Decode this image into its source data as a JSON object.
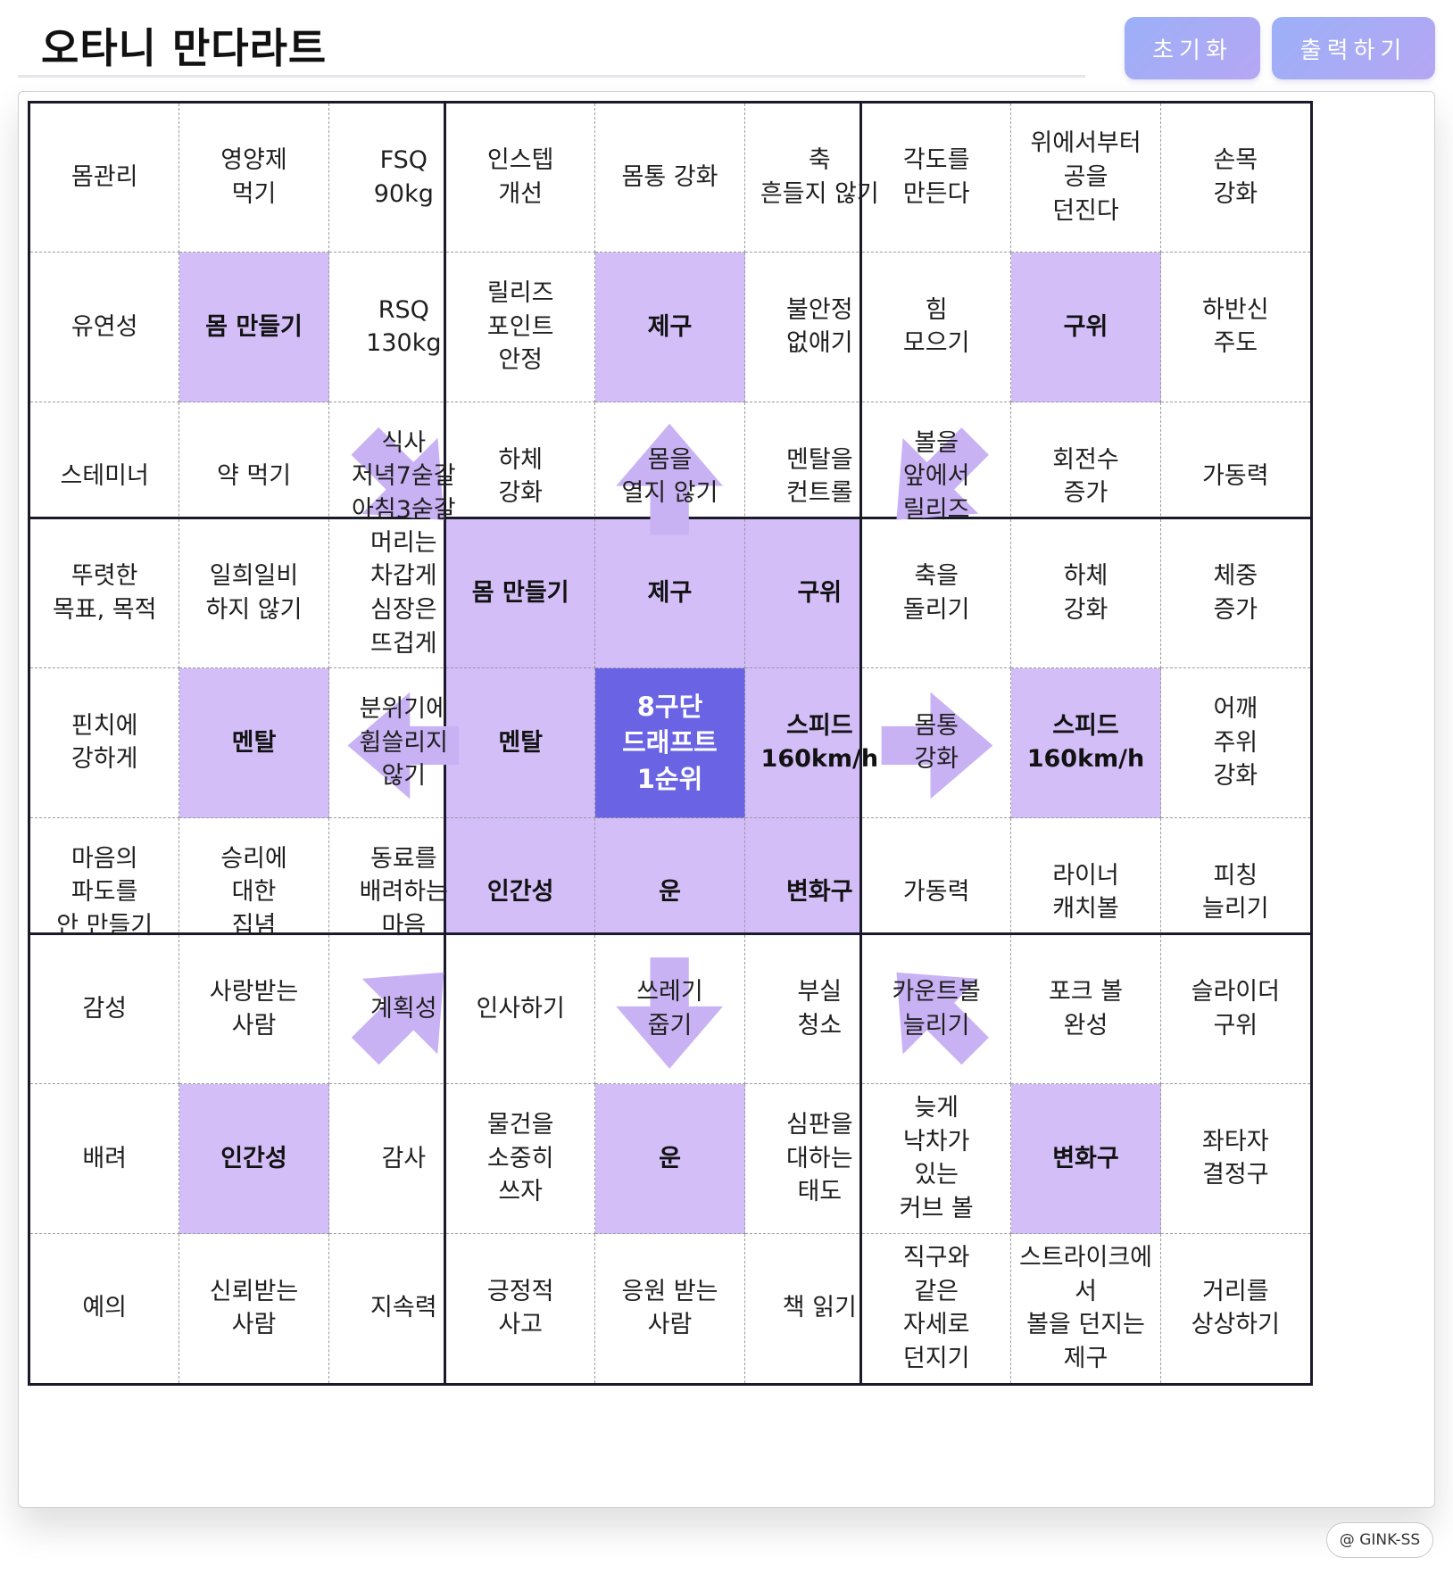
{
  "header": {
    "title": "오타니 만다라트",
    "reset_label": "초기화",
    "print_label": "출력하기"
  },
  "colors": {
    "goal_cell": "#d3bef8",
    "center_goal": "#6a64e4",
    "arrow": "#c9b2f4",
    "button_gradient": [
      "#9bb0f8",
      "#b6a6f3"
    ]
  },
  "blocks": [
    [
      "몸관리",
      "영양제\n먹기",
      "FSQ\n90kg",
      "유연성",
      "몸 만들기",
      "RSQ\n130kg",
      "스테미너",
      "약 먹기",
      "식사\n저녁7숟갈\n아침3숟갈"
    ],
    [
      "인스텝\n개선",
      "몸통 강화",
      "축\n흔들지 않기",
      "릴리즈\n포인트\n안정",
      "제구",
      "불안정\n없애기",
      "하체\n강화",
      "몸을\n열지 않기",
      "멘탈을\n컨트롤"
    ],
    [
      "각도를\n만든다",
      "위에서부터\n공을\n던진다",
      "손목\n강화",
      "힘\n모으기",
      "구위",
      "하반신\n주도",
      "볼을\n앞에서\n릴리즈",
      "회전수\n증가",
      "가동력"
    ],
    [
      "뚜렷한\n목표, 목적",
      "일희일비\n하지 않기",
      "머리는\n차갑게\n심장은\n뜨겁게",
      "핀치에\n강하게",
      "멘탈",
      "분위기에\n휩쓸리지\n않기",
      "마음의\n파도를\n안 만들기",
      "승리에\n대한\n집념",
      "동료를\n배려하는\n마음"
    ],
    [
      "몸 만들기",
      "제구",
      "구위",
      "멘탈",
      "8구단\n드래프트\n1순위",
      "스피드\n160km/h",
      "인간성",
      "운",
      "변화구"
    ],
    [
      "축을\n돌리기",
      "하체\n강화",
      "체중\n증가",
      "몸통\n강화",
      "스피드\n160km/h",
      "어깨\n주위\n강화",
      "가동력",
      "라이너\n캐치볼",
      "피칭\n늘리기"
    ],
    [
      "감성",
      "사랑받는\n사람",
      "계획성",
      "배려",
      "인간성",
      "감사",
      "예의",
      "신뢰받는\n사람",
      "지속력"
    ],
    [
      "인사하기",
      "쓰레기\n줍기",
      "부실\n청소",
      "물건을\n소중히\n쓰자",
      "운",
      "심판을\n대하는\n태도",
      "긍정적\n사고",
      "응원 받는\n사람",
      "책 읽기"
    ],
    [
      "카운트볼\n늘리기",
      "포크 볼\n완성",
      "슬라이더\n구위",
      "늦게\n낙차가\n있는\n커브 볼",
      "변화구",
      "좌타자\n결정구",
      "직구와\n같은\n자세로\n던지기",
      "스트라이크에\n서\n볼을 던지는\n제구",
      "거리를\n상상하기"
    ]
  ],
  "arrows": [
    {
      "block": 0,
      "cell": 8,
      "direction": "down-right"
    },
    {
      "block": 1,
      "cell": 7,
      "direction": "up"
    },
    {
      "block": 2,
      "cell": 6,
      "direction": "down-left"
    },
    {
      "block": 3,
      "cell": 5,
      "direction": "left"
    },
    {
      "block": 5,
      "cell": 3,
      "direction": "right"
    },
    {
      "block": 6,
      "cell": 2,
      "direction": "up-right"
    },
    {
      "block": 7,
      "cell": 1,
      "direction": "down"
    },
    {
      "block": 8,
      "cell": 0,
      "direction": "up-left"
    }
  ],
  "watermark": "@ GINK-SS"
}
